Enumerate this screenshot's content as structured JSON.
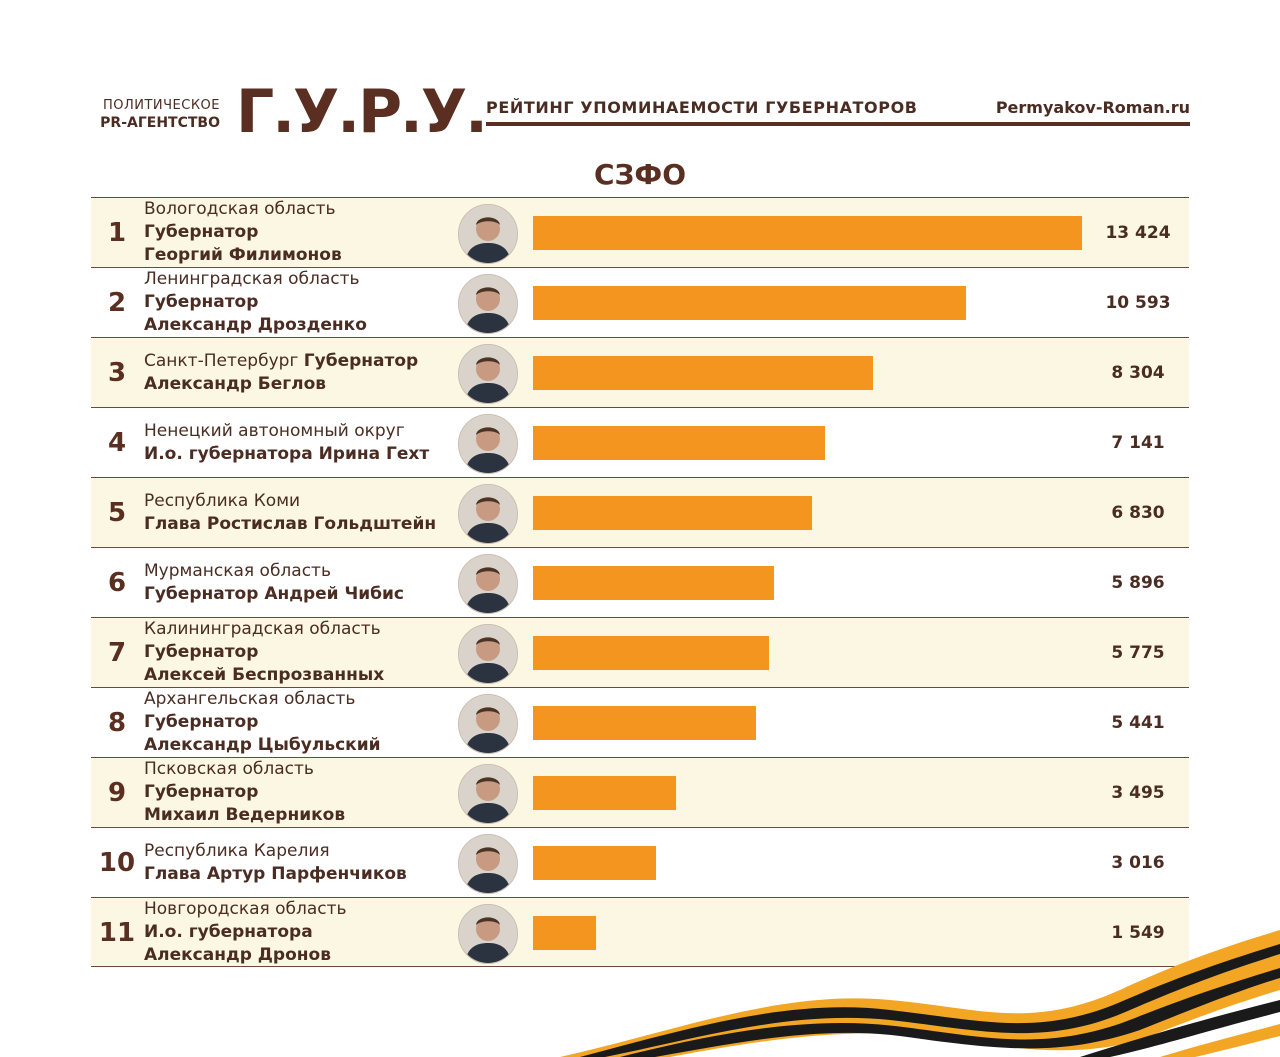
{
  "header": {
    "agency_line1": "ПОЛИТИЧЕСКОЕ",
    "agency_line2": "PR-АГЕНТСТВО",
    "logo": "Г.У.Р.У.",
    "rating_title": "РЕЙТИНГ УПОМИНАЕМОСТИ ГУБЕРНАТОРОВ",
    "site": "Permyakov-Roman.ru"
  },
  "region_title": "СЗФО",
  "colors": {
    "bar": "#f4951f",
    "brown": "#5a2e20",
    "row_alt": "#fbf7e2"
  },
  "chart_data": {
    "type": "bar",
    "orientation": "horizontal",
    "title": "СЗФО",
    "categories": [
      "Вологодская область",
      "Ленинградская область",
      "Санкт-Петербург",
      "Ненецкий автономный округ",
      "Республика Коми",
      "Мурманская область",
      "Калининградская область",
      "Архангельская область",
      "Псковская область",
      "Республика Карелия",
      "Новгородская область"
    ],
    "values": [
      13424,
      10593,
      8304,
      7141,
      6830,
      5896,
      5775,
      5441,
      3495,
      3016,
      1549
    ],
    "rows": [
      {
        "rank": "1",
        "region": "Вологодская область",
        "person": [
          "Губернатор",
          "Георгий Филимонов"
        ],
        "value": 13424,
        "value_label": "13 424"
      },
      {
        "rank": "2",
        "region": "Ленинградская область",
        "person": [
          "Губернатор",
          "Александр Дрозденко"
        ],
        "value": 10593,
        "value_label": "10 593"
      },
      {
        "rank": "3",
        "region": "Санкт-Петербург",
        "region_inline_person": "Губернатор",
        "person": [
          "Александр Беглов"
        ],
        "value": 8304,
        "value_label": "8 304"
      },
      {
        "rank": "4",
        "region": "Ненецкий автономный округ",
        "person": [
          "И.о. губернатора Ирина Гехт"
        ],
        "value": 7141,
        "value_label": "7 141"
      },
      {
        "rank": "5",
        "region": "Республика Коми",
        "person": [
          "Глава Ростислав Гольдштейн"
        ],
        "value": 6830,
        "value_label": "6 830"
      },
      {
        "rank": "6",
        "region": "Мурманская область",
        "person": [
          "Губернатор Андрей Чибис"
        ],
        "value": 5896,
        "value_label": "5 896"
      },
      {
        "rank": "7",
        "region": "Калининградская область",
        "person": [
          "Губернатор",
          "Алексей Беспрозванных"
        ],
        "value": 5775,
        "value_label": "5 775"
      },
      {
        "rank": "8",
        "region": "Архангельская область",
        "person": [
          "Губернатор",
          "Александр Цыбульский"
        ],
        "value": 5441,
        "value_label": "5 441"
      },
      {
        "rank": "9",
        "region": "Псковская область",
        "person": [
          "Губернатор",
          "Михаил Ведерников"
        ],
        "value": 3495,
        "value_label": "3 495"
      },
      {
        "rank": "10",
        "region": "Республика Карелия",
        "person": [
          "Глава Артур Парфенчиков"
        ],
        "value": 3016,
        "value_label": "3 016"
      },
      {
        "rank": "11",
        "region": "Новгородская область",
        "person": [
          "И.о. губернатора",
          "Александр Дронов"
        ],
        "value": 1549,
        "value_label": "1 549"
      }
    ],
    "xlabel": "",
    "ylabel": "",
    "grid": false,
    "legend": "none"
  }
}
